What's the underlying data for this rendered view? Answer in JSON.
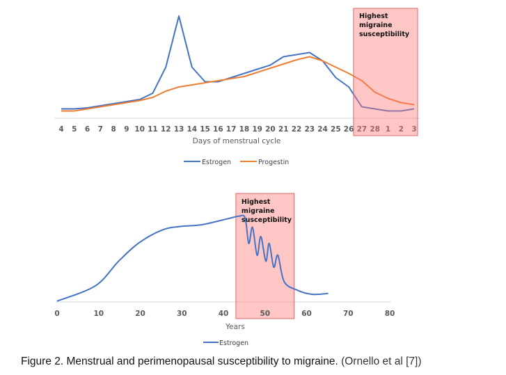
{
  "chart_data": [
    {
      "type": "line",
      "xlabel": "Days of menstrual cycle",
      "ylabel": "",
      "categories": [
        "4",
        "5",
        "6",
        "7",
        "8",
        "9",
        "10",
        "11",
        "12",
        "13",
        "14",
        "15",
        "16",
        "17",
        "18",
        "19",
        "20",
        "21",
        "22",
        "23",
        "24",
        "25",
        "26",
        "27",
        "28",
        "1",
        "2",
        "3"
      ],
      "series": [
        {
          "name": "Estrogen",
          "color": "#4472C4",
          "values": [
            9,
            9,
            10,
            12,
            14,
            16,
            18,
            24,
            49,
            98,
            49,
            35,
            35,
            39,
            43,
            47,
            51,
            59,
            61,
            63,
            55,
            39,
            30,
            11,
            9,
            7,
            7,
            9
          ]
        },
        {
          "name": "Progestin",
          "color": "#ED7D31",
          "values": [
            7,
            7,
            9,
            11,
            13,
            15,
            17,
            20,
            26,
            30,
            32,
            34,
            36,
            38,
            40,
            44,
            48,
            52,
            56,
            59,
            55,
            49,
            43,
            36,
            25,
            19,
            15,
            13
          ]
        }
      ],
      "ylim": [
        0,
        100
      ],
      "grid": false,
      "legend": "bottom",
      "highlight": {
        "from": "27",
        "to": "3",
        "label": [
          "Highest",
          "migraine",
          "susceptibility"
        ],
        "color": "#FF9999"
      }
    },
    {
      "type": "line",
      "xlabel": "Years",
      "ylabel": "",
      "xlim": [
        0,
        80
      ],
      "xticks": [
        0,
        10,
        20,
        30,
        40,
        50,
        60,
        70,
        80
      ],
      "ylim": [
        0,
        100
      ],
      "series": [
        {
          "name": "Estrogen",
          "color": "#4472C4",
          "x": [
            0,
            9.2,
            14.8,
            19.8,
            25.4,
            29.8,
            34.8,
            41,
            43.7,
            45.2,
            46.1,
            47,
            48.1,
            49,
            50.2,
            51,
            52.1,
            53.1,
            54.6,
            57.7,
            61.3,
            65.2
          ],
          "y": [
            1,
            19,
            48,
            70,
            85,
            89,
            91,
            98,
            101,
            99,
            69,
            88,
            55,
            77,
            48,
            69,
            41,
            55,
            24,
            14,
            9,
            10
          ]
        }
      ],
      "grid": false,
      "legend": "bottom",
      "highlight": {
        "from": 43,
        "to": 57,
        "label": [
          "Highest",
          "migraine",
          "susceptibility"
        ],
        "color": "#FF9999"
      }
    }
  ],
  "caption": {
    "bold": "Figure 2. Menstrual and perimenopausal susceptibility to migraine.",
    "source": "(Ornello et al [7])"
  }
}
